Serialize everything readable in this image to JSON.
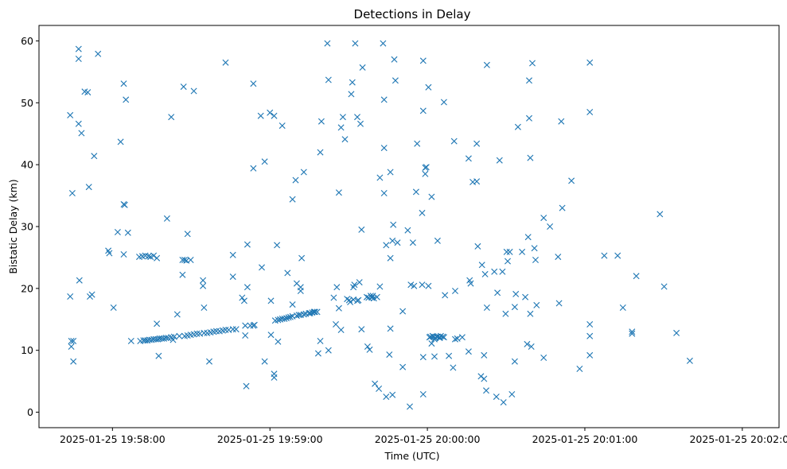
{
  "chart_data": {
    "type": "scatter",
    "title": "Detections in Delay",
    "xlabel": "Time (UTC)",
    "ylabel": "Bistatic Delay (km)",
    "marker": "x",
    "color": "#1f77b4",
    "grid": false,
    "legend": "none",
    "x_unit": "seconds since 2025-01-25 19:58:00 UTC",
    "xlim": [
      -28,
      254
    ],
    "ylim": [
      -2.5,
      62.5
    ],
    "x_ticks": [
      0,
      60,
      120,
      180,
      240
    ],
    "x_tick_labels": [
      "2025-01-25 19:58:00",
      "2025-01-25 19:59:00",
      "2025-01-25 20:00:00",
      "2025-01-25 20:01:00",
      "2025-01-25 20:02:00"
    ],
    "y_ticks": [
      0,
      10,
      20,
      30,
      40,
      50,
      60
    ],
    "y_tick_labels": [
      "0",
      "10",
      "20",
      "30",
      "40",
      "50",
      "60"
    ],
    "points": [
      [
        -16.1,
        48.0
      ],
      [
        -16.1,
        18.7
      ],
      [
        -15.7,
        11.5
      ],
      [
        -15.7,
        10.6
      ],
      [
        -15.3,
        35.4
      ],
      [
        -14.9,
        8.2
      ],
      [
        -14.9,
        11.5
      ],
      [
        -12.9,
        58.7
      ],
      [
        -12.9,
        57.1
      ],
      [
        -12.9,
        46.6
      ],
      [
        -12.6,
        21.3
      ],
      [
        -11.8,
        45.1
      ],
      [
        -10.6,
        51.8
      ],
      [
        -9.4,
        51.7
      ],
      [
        -9.0,
        36.4
      ],
      [
        -8.6,
        18.7
      ],
      [
        -7.8,
        19.0
      ],
      [
        -7.0,
        41.4
      ],
      [
        -5.5,
        57.9
      ],
      [
        -1.6,
        26.1
      ],
      [
        -1.2,
        25.7
      ],
      [
        0.4,
        16.9
      ],
      [
        2.0,
        29.1
      ],
      [
        3.1,
        43.7
      ],
      [
        4.3,
        53.1
      ],
      [
        4.3,
        33.6
      ],
      [
        4.3,
        25.5
      ],
      [
        4.7,
        33.5
      ],
      [
        5.1,
        50.5
      ],
      [
        5.9,
        29.0
      ],
      [
        7.1,
        11.5
      ],
      [
        10.2,
        25.1
      ],
      [
        10.6,
        11.5
      ],
      [
        11.4,
        25.2
      ],
      [
        11.8,
        11.6
      ],
      [
        12.5,
        25.3
      ],
      [
        12.5,
        11.6
      ],
      [
        13.3,
        11.6
      ],
      [
        13.7,
        25.2
      ],
      [
        14.1,
        11.7
      ],
      [
        14.5,
        25.1
      ],
      [
        14.9,
        11.7
      ],
      [
        15.7,
        25.3
      ],
      [
        15.7,
        11.8
      ],
      [
        16.5,
        11.8
      ],
      [
        16.9,
        14.3
      ],
      [
        16.9,
        24.9
      ],
      [
        17.3,
        11.8
      ],
      [
        17.6,
        9.1
      ],
      [
        18.0,
        11.9
      ],
      [
        18.8,
        11.9
      ],
      [
        19.6,
        11.9
      ],
      [
        20.4,
        12.0
      ],
      [
        20.8,
        31.3
      ],
      [
        21.2,
        12.0
      ],
      [
        22.4,
        47.7
      ],
      [
        22.4,
        12.1
      ],
      [
        23.1,
        11.7
      ],
      [
        23.5,
        12.2
      ],
      [
        24.7,
        15.8
      ],
      [
        25.5,
        12.3
      ],
      [
        26.7,
        24.6
      ],
      [
        26.7,
        22.2
      ],
      [
        27.1,
        52.6
      ],
      [
        27.5,
        24.6
      ],
      [
        27.5,
        12.3
      ],
      [
        28.2,
        24.5
      ],
      [
        28.6,
        28.8
      ],
      [
        28.6,
        12.4
      ],
      [
        29.8,
        24.6
      ],
      [
        29.8,
        12.5
      ],
      [
        31.0,
        51.9
      ],
      [
        31.0,
        12.6
      ],
      [
        32.2,
        12.7
      ],
      [
        33.3,
        12.7
      ],
      [
        34.5,
        20.4
      ],
      [
        34.5,
        21.3
      ],
      [
        34.9,
        16.9
      ],
      [
        34.9,
        12.8
      ],
      [
        36.1,
        12.8
      ],
      [
        36.9,
        8.2
      ],
      [
        37.3,
        12.9
      ],
      [
        38.5,
        13.0
      ],
      [
        39.6,
        13.1
      ],
      [
        40.8,
        13.1
      ],
      [
        42.0,
        13.2
      ],
      [
        43.1,
        56.5
      ],
      [
        43.1,
        13.3
      ],
      [
        44.3,
        13.3
      ],
      [
        45.9,
        25.4
      ],
      [
        45.9,
        21.9
      ],
      [
        45.9,
        13.4
      ],
      [
        47.1,
        13.4
      ],
      [
        49.4,
        18.5
      ],
      [
        50.2,
        18.0
      ],
      [
        50.6,
        14.0
      ],
      [
        50.6,
        12.4
      ],
      [
        51.0,
        4.2
      ],
      [
        51.4,
        27.1
      ],
      [
        51.4,
        20.2
      ],
      [
        52.5,
        14.0
      ],
      [
        53.7,
        14.0
      ],
      [
        53.7,
        53.1
      ],
      [
        53.7,
        39.4
      ],
      [
        54.1,
        14.1
      ],
      [
        56.5,
        47.9
      ],
      [
        56.9,
        23.4
      ],
      [
        58.0,
        40.5
      ],
      [
        58.0,
        8.2
      ],
      [
        60.0,
        48.4
      ],
      [
        60.4,
        12.5
      ],
      [
        60.4,
        18.0
      ],
      [
        61.6,
        47.9
      ],
      [
        61.6,
        6.2
      ],
      [
        61.6,
        5.6
      ],
      [
        62.0,
        14.8
      ],
      [
        62.7,
        27.0
      ],
      [
        63.1,
        11.4
      ],
      [
        63.1,
        14.9
      ],
      [
        63.9,
        15.0
      ],
      [
        64.7,
        46.3
      ],
      [
        64.7,
        15.1
      ],
      [
        65.5,
        15.1
      ],
      [
        66.3,
        15.2
      ],
      [
        66.7,
        22.5
      ],
      [
        67.1,
        15.3
      ],
      [
        67.8,
        15.4
      ],
      [
        68.6,
        34.4
      ],
      [
        68.6,
        17.4
      ],
      [
        68.6,
        15.5
      ],
      [
        69.8,
        37.5
      ],
      [
        70.2,
        15.6
      ],
      [
        70.2,
        20.8
      ],
      [
        71.0,
        15.7
      ],
      [
        71.7,
        20.2
      ],
      [
        71.7,
        19.6
      ],
      [
        71.7,
        15.7
      ],
      [
        72.1,
        24.9
      ],
      [
        72.9,
        38.8
      ],
      [
        72.9,
        15.8
      ],
      [
        73.7,
        15.9
      ],
      [
        74.9,
        16.0
      ],
      [
        75.3,
        16.0
      ],
      [
        76.1,
        16.1
      ],
      [
        76.8,
        16.2
      ],
      [
        77.2,
        16.2
      ],
      [
        78.0,
        16.2
      ],
      [
        78.4,
        9.5
      ],
      [
        79.2,
        11.5
      ],
      [
        79.2,
        42.0
      ],
      [
        79.6,
        47.0
      ],
      [
        81.9,
        59.6
      ],
      [
        82.3,
        53.7
      ],
      [
        82.3,
        10.0
      ],
      [
        84.3,
        18.5
      ],
      [
        85.1,
        14.2
      ],
      [
        85.5,
        20.2
      ],
      [
        86.3,
        35.5
      ],
      [
        86.3,
        16.8
      ],
      [
        87.1,
        13.3
      ],
      [
        87.1,
        46.0
      ],
      [
        87.8,
        47.7
      ],
      [
        88.6,
        44.1
      ],
      [
        89.4,
        18.3
      ],
      [
        90.2,
        18.1
      ],
      [
        90.6,
        17.8
      ],
      [
        91.0,
        51.4
      ],
      [
        91.4,
        53.3
      ],
      [
        91.8,
        20.2
      ],
      [
        91.8,
        18.2
      ],
      [
        92.2,
        20.6
      ],
      [
        92.5,
        59.6
      ],
      [
        93.3,
        47.7
      ],
      [
        93.3,
        18.0
      ],
      [
        93.7,
        18.1
      ],
      [
        94.1,
        21.0
      ],
      [
        94.5,
        46.6
      ],
      [
        94.9,
        13.4
      ],
      [
        94.9,
        29.5
      ],
      [
        95.3,
        55.7
      ],
      [
        96.9,
        18.6
      ],
      [
        97.2,
        10.6
      ],
      [
        97.6,
        18.5
      ],
      [
        98.0,
        10.1
      ],
      [
        98.4,
        18.8
      ],
      [
        98.8,
        18.5
      ],
      [
        99.2,
        18.8
      ],
      [
        99.6,
        18.4
      ],
      [
        100.0,
        4.6
      ],
      [
        100.8,
        18.6
      ],
      [
        101.5,
        3.8
      ],
      [
        101.9,
        20.3
      ],
      [
        101.9,
        37.9
      ],
      [
        103.1,
        59.6
      ],
      [
        103.5,
        42.7
      ],
      [
        103.5,
        35.4
      ],
      [
        103.5,
        50.5
      ],
      [
        104.3,
        27.0
      ],
      [
        104.3,
        2.5
      ],
      [
        105.5,
        9.3
      ],
      [
        105.9,
        13.5
      ],
      [
        105.9,
        38.8
      ],
      [
        105.9,
        24.9
      ],
      [
        106.7,
        27.7
      ],
      [
        106.7,
        2.8
      ],
      [
        107.0,
        30.3
      ],
      [
        107.4,
        57.0
      ],
      [
        107.8,
        53.6
      ],
      [
        108.6,
        27.4
      ],
      [
        110.6,
        16.3
      ],
      [
        110.6,
        7.3
      ],
      [
        112.5,
        29.4
      ],
      [
        113.3,
        0.9
      ],
      [
        113.7,
        20.6
      ],
      [
        114.5,
        27.4
      ],
      [
        114.9,
        20.4
      ],
      [
        115.7,
        35.6
      ],
      [
        116.1,
        43.4
      ],
      [
        118.0,
        20.6
      ],
      [
        118.0,
        32.2
      ],
      [
        118.4,
        56.8
      ],
      [
        118.4,
        48.7
      ],
      [
        118.4,
        8.9
      ],
      [
        118.4,
        2.9
      ],
      [
        119.2,
        38.5
      ],
      [
        119.2,
        39.5
      ],
      [
        119.6,
        39.6
      ],
      [
        120.4,
        20.4
      ],
      [
        120.4,
        52.5
      ],
      [
        120.8,
        12.1
      ],
      [
        121.2,
        12.2
      ],
      [
        121.6,
        34.8
      ],
      [
        121.6,
        11.1
      ],
      [
        122.0,
        12.3
      ],
      [
        122.4,
        12.2
      ],
      [
        122.7,
        9.0
      ],
      [
        122.7,
        11.8
      ],
      [
        123.1,
        12.0
      ],
      [
        123.5,
        12.2
      ],
      [
        123.9,
        27.7
      ],
      [
        123.9,
        12.2
      ],
      [
        124.7,
        12.1
      ],
      [
        124.7,
        12.0
      ],
      [
        125.1,
        12.3
      ],
      [
        125.9,
        12.2
      ],
      [
        126.3,
        12.1
      ],
      [
        126.3,
        50.1
      ],
      [
        126.7,
        18.9
      ],
      [
        128.2,
        9.1
      ],
      [
        129.8,
        7.2
      ],
      [
        130.2,
        43.8
      ],
      [
        130.6,
        19.6
      ],
      [
        130.6,
        11.8
      ],
      [
        131.4,
        11.9
      ],
      [
        133.3,
        12.1
      ],
      [
        135.7,
        9.8
      ],
      [
        135.7,
        41.0
      ],
      [
        136.1,
        21.3
      ],
      [
        136.5,
        20.8
      ],
      [
        137.3,
        37.2
      ],
      [
        138.8,
        37.3
      ],
      [
        138.8,
        43.4
      ],
      [
        139.2,
        26.8
      ],
      [
        140.4,
        5.8
      ],
      [
        140.8,
        23.8
      ],
      [
        141.6,
        5.4
      ],
      [
        141.6,
        9.2
      ],
      [
        142.0,
        22.3
      ],
      [
        142.4,
        3.5
      ],
      [
        142.7,
        16.9
      ],
      [
        142.7,
        56.1
      ],
      [
        145.5,
        22.7
      ],
      [
        146.3,
        2.5
      ],
      [
        146.7,
        19.3
      ],
      [
        147.5,
        40.7
      ],
      [
        148.6,
        22.7
      ],
      [
        149.0,
        1.6
      ],
      [
        149.8,
        15.9
      ],
      [
        150.2,
        25.9
      ],
      [
        150.6,
        24.4
      ],
      [
        151.4,
        25.9
      ],
      [
        152.2,
        2.9
      ],
      [
        153.3,
        8.2
      ],
      [
        153.3,
        17.0
      ],
      [
        153.7,
        19.1
      ],
      [
        154.5,
        46.1
      ],
      [
        156.1,
        25.9
      ],
      [
        157.3,
        18.6
      ],
      [
        158.0,
        11.0
      ],
      [
        158.4,
        28.3
      ],
      [
        158.8,
        53.6
      ],
      [
        158.8,
        47.5
      ],
      [
        159.2,
        41.1
      ],
      [
        159.2,
        15.9
      ],
      [
        159.6,
        10.6
      ],
      [
        160.0,
        56.4
      ],
      [
        160.8,
        26.5
      ],
      [
        161.2,
        24.6
      ],
      [
        161.6,
        17.3
      ],
      [
        164.3,
        8.8
      ],
      [
        164.3,
        31.4
      ],
      [
        166.7,
        30.0
      ],
      [
        169.8,
        25.1
      ],
      [
        170.2,
        17.6
      ],
      [
        171.0,
        47.0
      ],
      [
        171.4,
        33.0
      ],
      [
        174.9,
        37.4
      ],
      [
        178.0,
        7.0
      ],
      [
        181.9,
        56.5
      ],
      [
        181.9,
        48.5
      ],
      [
        181.9,
        14.2
      ],
      [
        181.9,
        12.3
      ],
      [
        181.9,
        9.2
      ],
      [
        187.4,
        25.3
      ],
      [
        192.5,
        25.3
      ],
      [
        194.5,
        16.9
      ],
      [
        198.0,
        13.0
      ],
      [
        198.0,
        12.7
      ],
      [
        199.6,
        22.0
      ],
      [
        208.6,
        32.0
      ],
      [
        210.2,
        20.3
      ],
      [
        214.9,
        12.8
      ],
      [
        220.0,
        8.3
      ]
    ]
  }
}
